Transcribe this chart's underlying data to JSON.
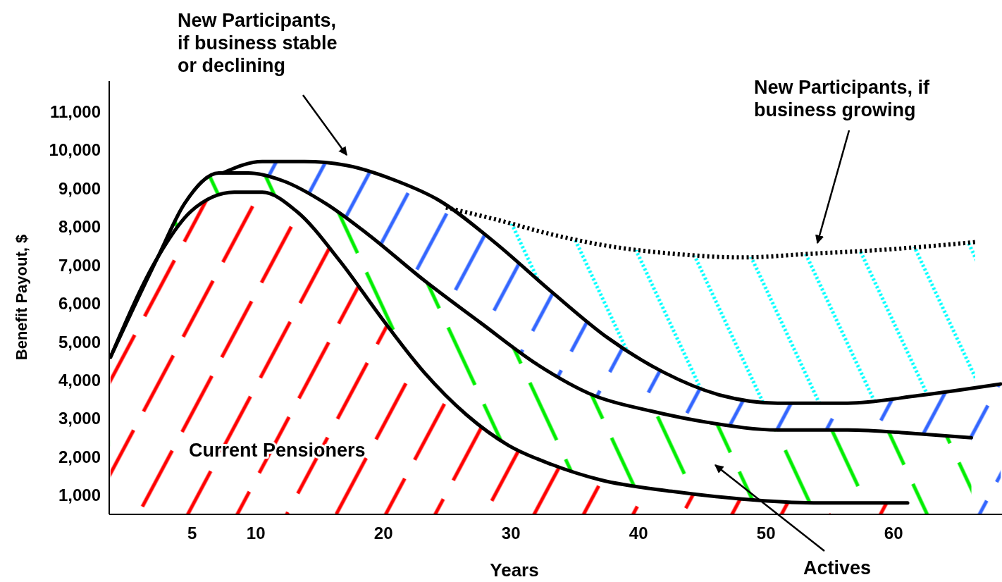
{
  "chart_data": {
    "type": "area",
    "xlabel": "Years",
    "ylabel": "Benefit Payout, $",
    "xlim": [
      -1.5,
      68.5
    ],
    "xticks": [
      5,
      10,
      20,
      30,
      40,
      50,
      60
    ],
    "ylim": [
      500,
      11800
    ],
    "yticks": [
      {
        "value": 1000,
        "label": "1,000"
      },
      {
        "value": 2000,
        "label": "2,000"
      },
      {
        "value": 3000,
        "label": "3,000"
      },
      {
        "value": 4000,
        "label": "4,000"
      },
      {
        "value": 5000,
        "label": "5,000"
      },
      {
        "value": 6000,
        "label": "6,000"
      },
      {
        "value": 7000,
        "label": "7,000"
      },
      {
        "value": 8000,
        "label": "8,000"
      },
      {
        "value": 9000,
        "label": "9,000"
      },
      {
        "value": 10000,
        "label": "10,000"
      },
      {
        "value": 11000,
        "label": "11,000"
      }
    ],
    "grid": false,
    "series": [
      {
        "color": "#ff0000",
        "x": [
          -1.4,
          2.3,
          4.9,
          8.3,
          10.5,
          13.2,
          16.6,
          19.9,
          23.2,
          26.5,
          29.8,
          33.2,
          37.0,
          42.6,
          48.1,
          53.7,
          61.1
        ],
        "values": [
          4600,
          7200,
          8400,
          8900,
          8900,
          8400,
          7100,
          5600,
          4200,
          3100,
          2300,
          1800,
          1400,
          1100,
          900,
          800,
          800
        ]
      },
      {
        "color": "#00ee00",
        "x": [
          -1.4,
          2.3,
          4.4,
          7.1,
          9.4,
          12.1,
          15.5,
          18.8,
          23.2,
          27.6,
          32.1,
          36.5,
          40.9,
          45.4,
          50.9,
          56.4,
          62.0,
          66.1
        ],
        "values": [
          4600,
          7200,
          8600,
          9400,
          9400,
          9200,
          8600,
          7800,
          6600,
          5500,
          4400,
          3600,
          3200,
          2900,
          2700,
          2700,
          2600,
          2500
        ]
      },
      {
        "color": "#3366ff",
        "x": [
          7.4,
          10.5,
          13.8,
          17.1,
          21.0,
          24.3,
          28.7,
          33.2,
          37.6,
          42.0,
          46.5,
          50.9,
          56.4,
          62.0,
          68.4
        ],
        "values": [
          9400,
          9700,
          9700,
          9600,
          9200,
          8700,
          7600,
          6300,
          5100,
          4200,
          3600,
          3400,
          3400,
          3600,
          3900
        ]
      },
      {
        "color": "#00ffff",
        "line_style": "dotted",
        "x": [
          24.9,
          28.7,
          33.2,
          37.6,
          42.6,
          48.1,
          53.7,
          59.2,
          66.4
        ],
        "values": [
          8500,
          8200,
          7800,
          7500,
          7300,
          7200,
          7300,
          7400,
          7600
        ]
      }
    ],
    "annotations": [
      "New Participants, if business stable or declining",
      "New Participants, if business growing",
      "Actives",
      "Current Pensioners"
    ]
  }
}
